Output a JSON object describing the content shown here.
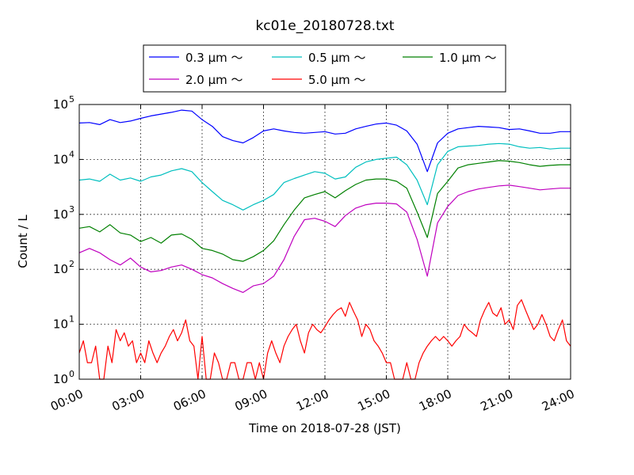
{
  "chart_data": {
    "type": "line",
    "title": "kc01e_20180728.txt",
    "xlabel": "Time on 2018-07-28 (JST)",
    "ylabel": "Count / L",
    "yscale": "log",
    "xlim": [
      0,
      24
    ],
    "ylim": [
      1,
      100000
    ],
    "x_ticks": [
      {
        "value": 0,
        "label": "00:00"
      },
      {
        "value": 3,
        "label": "03:00"
      },
      {
        "value": 6,
        "label": "06:00"
      },
      {
        "value": 9,
        "label": "09:00"
      },
      {
        "value": 12,
        "label": "12:00"
      },
      {
        "value": 15,
        "label": "15:00"
      },
      {
        "value": 18,
        "label": "18:00"
      },
      {
        "value": 21,
        "label": "21:00"
      },
      {
        "value": 24,
        "label": "24:00"
      }
    ],
    "y_ticks": [
      {
        "value": 1,
        "base": "10",
        "exp": "0"
      },
      {
        "value": 10,
        "base": "10",
        "exp": "1"
      },
      {
        "value": 100,
        "base": "10",
        "exp": "2"
      },
      {
        "value": 1000,
        "base": "10",
        "exp": "3"
      },
      {
        "value": 10000,
        "base": "10",
        "exp": "4"
      },
      {
        "value": 100000,
        "base": "10",
        "exp": "5"
      }
    ],
    "grid": true,
    "legend_position": "top-center",
    "series": [
      {
        "name": "0.3 μm ～",
        "color": "#0000ff",
        "x": [
          0,
          0.5,
          1,
          1.5,
          2,
          2.5,
          3,
          3.5,
          4,
          4.5,
          5,
          5.5,
          6,
          6.5,
          7,
          7.5,
          8,
          8.5,
          9,
          9.5,
          10,
          10.5,
          11,
          11.5,
          12,
          12.5,
          13,
          13.5,
          14,
          14.5,
          15,
          15.5,
          16,
          16.5,
          17,
          17.5,
          18,
          18.5,
          19,
          19.5,
          20,
          20.5,
          21,
          21.5,
          22,
          22.5,
          23,
          23.5,
          24
        ],
        "values": [
          46000,
          47000,
          43000,
          53000,
          47000,
          50000,
          56000,
          62000,
          67000,
          72000,
          79000,
          76000,
          53000,
          40000,
          26000,
          22000,
          20000,
          25000,
          33000,
          36000,
          33000,
          31000,
          30000,
          31000,
          32000,
          29000,
          30000,
          36000,
          40000,
          44000,
          46000,
          42000,
          33000,
          19000,
          6000,
          20000,
          30000,
          36000,
          38000,
          40000,
          39000,
          38000,
          35000,
          36000,
          33000,
          30000,
          30000,
          32000,
          32000
        ]
      },
      {
        "name": "0.5 μm ～",
        "color": "#00bfbf",
        "x": [
          0,
          0.5,
          1,
          1.5,
          2,
          2.5,
          3,
          3.5,
          4,
          4.5,
          5,
          5.5,
          6,
          6.5,
          7,
          7.5,
          8,
          8.5,
          9,
          9.5,
          10,
          10.5,
          11,
          11.5,
          12,
          12.5,
          13,
          13.5,
          14,
          14.5,
          15,
          15.5,
          16,
          16.5,
          17,
          17.5,
          18,
          18.5,
          19,
          19.5,
          20,
          20.5,
          21,
          21.5,
          22,
          22.5,
          23,
          23.5,
          24
        ],
        "values": [
          4200,
          4400,
          4000,
          5400,
          4200,
          4600,
          4000,
          4800,
          5200,
          6200,
          6800,
          6000,
          3800,
          2600,
          1800,
          1500,
          1200,
          1500,
          1800,
          2300,
          3800,
          4500,
          5200,
          6000,
          5600,
          4400,
          4800,
          7200,
          9000,
          10000,
          10500,
          11000,
          8000,
          4200,
          1500,
          8000,
          14000,
          17000,
          17500,
          18000,
          19000,
          19500,
          19000,
          17000,
          16000,
          16500,
          15500,
          16000,
          16000
        ]
      },
      {
        "name": "1.0 μm ～",
        "color": "#008000",
        "x": [
          0,
          0.5,
          1,
          1.5,
          2,
          2.5,
          3,
          3.5,
          4,
          4.5,
          5,
          5.5,
          6,
          6.5,
          7,
          7.5,
          8,
          8.5,
          9,
          9.5,
          10,
          10.5,
          11,
          11.5,
          12,
          12.5,
          13,
          13.5,
          14,
          14.5,
          15,
          15.5,
          16,
          16.5,
          17,
          17.5,
          18,
          18.5,
          19,
          19.5,
          20,
          20.5,
          21,
          21.5,
          22,
          22.5,
          23,
          23.5,
          24
        ],
        "values": [
          560,
          600,
          480,
          650,
          460,
          420,
          320,
          380,
          300,
          420,
          440,
          350,
          240,
          220,
          190,
          150,
          140,
          170,
          220,
          330,
          650,
          1200,
          2000,
          2300,
          2600,
          2000,
          2700,
          3500,
          4200,
          4400,
          4400,
          4000,
          3000,
          1100,
          380,
          2400,
          4000,
          7000,
          8000,
          8500,
          9000,
          9500,
          9300,
          8800,
          8000,
          7500,
          7800,
          8000,
          8000
        ]
      },
      {
        "name": "2.0 μm ～",
        "color": "#bf00bf",
        "x": [
          0,
          0.5,
          1,
          1.5,
          2,
          2.5,
          3,
          3.5,
          4,
          4.5,
          5,
          5.5,
          6,
          6.5,
          7,
          7.5,
          8,
          8.5,
          9,
          9.5,
          10,
          10.5,
          11,
          11.5,
          12,
          12.5,
          13,
          13.5,
          14,
          14.5,
          15,
          15.5,
          16,
          16.5,
          17,
          17.5,
          18,
          18.5,
          19,
          19.5,
          20,
          20.5,
          21,
          21.5,
          22,
          22.5,
          23,
          23.5,
          24
        ],
        "values": [
          200,
          240,
          200,
          150,
          120,
          160,
          110,
          90,
          95,
          110,
          120,
          100,
          80,
          70,
          55,
          45,
          38,
          50,
          55,
          75,
          150,
          400,
          800,
          850,
          750,
          600,
          950,
          1300,
          1500,
          1600,
          1600,
          1550,
          1100,
          350,
          75,
          700,
          1400,
          2200,
          2600,
          2900,
          3100,
          3300,
          3400,
          3200,
          3000,
          2800,
          2900,
          3000,
          3000
        ]
      },
      {
        "name": "5.0 μm ～",
        "color": "#ff0000",
        "x": [
          0,
          0.2,
          0.4,
          0.6,
          0.8,
          1,
          1.2,
          1.4,
          1.6,
          1.8,
          2,
          2.2,
          2.4,
          2.6,
          2.8,
          3,
          3.2,
          3.4,
          3.6,
          3.8,
          4,
          4.2,
          4.4,
          4.6,
          4.8,
          5,
          5.2,
          5.4,
          5.6,
          5.8,
          6,
          6.2,
          6.4,
          6.6,
          6.8,
          7,
          7.2,
          7.4,
          7.6,
          7.8,
          8,
          8.2,
          8.4,
          8.6,
          8.8,
          9,
          9.2,
          9.4,
          9.6,
          9.8,
          10,
          10.2,
          10.4,
          10.6,
          10.8,
          11,
          11.2,
          11.4,
          11.6,
          11.8,
          12,
          12.2,
          12.4,
          12.6,
          12.8,
          13,
          13.2,
          13.4,
          13.6,
          13.8,
          14,
          14.2,
          14.4,
          14.6,
          14.8,
          15,
          15.2,
          15.4,
          15.6,
          15.8,
          16,
          16.2,
          16.4,
          16.6,
          16.8,
          17,
          17.2,
          17.4,
          17.6,
          17.8,
          18,
          18.2,
          18.4,
          18.6,
          18.8,
          19,
          19.2,
          19.4,
          19.6,
          19.8,
          20,
          20.2,
          20.4,
          20.6,
          20.8,
          21,
          21.2,
          21.4,
          21.6,
          21.8,
          22,
          22.2,
          22.4,
          22.6,
          22.8,
          23,
          23.2,
          23.4,
          23.6,
          23.8,
          24
        ],
        "values": [
          3,
          5,
          2,
          2,
          4,
          1,
          1,
          4,
          2,
          8,
          5,
          7,
          4,
          5,
          2,
          3,
          2,
          5,
          3,
          2,
          3,
          4,
          6,
          8,
          5,
          7,
          12,
          5,
          4,
          1,
          6,
          1,
          1,
          3,
          2,
          1,
          1,
          2,
          2,
          1,
          1,
          2,
          2,
          1,
          2,
          1,
          3,
          5,
          3,
          2,
          4,
          6,
          8,
          10,
          5,
          3,
          7,
          10,
          8,
          7,
          9,
          12,
          15,
          18,
          20,
          14,
          25,
          17,
          12,
          6,
          10,
          8,
          5,
          4,
          3,
          2,
          2,
          1,
          1,
          1,
          2,
          1,
          1,
          2,
          3,
          4,
          5,
          6,
          5,
          6,
          5,
          4,
          5,
          6,
          10,
          8,
          7,
          6,
          12,
          18,
          25,
          16,
          14,
          20,
          10,
          12,
          8,
          22,
          28,
          18,
          12,
          8,
          10,
          15,
          10,
          6,
          5,
          8,
          12,
          5,
          4
        ]
      }
    ]
  }
}
